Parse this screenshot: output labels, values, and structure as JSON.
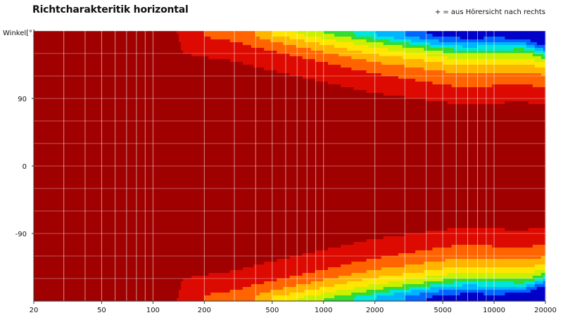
{
  "title": "Richtcharakteritik horizontal",
  "note": "+ = aus Hörersicht nach rechts",
  "chart_data": {
    "type": "heatmap",
    "title": "Richtcharakteritik horizontal",
    "xlabel": "",
    "ylabel": "Winkel[°]",
    "x_scale": "log",
    "xlim": [
      20,
      20000
    ],
    "ylim": [
      -180,
      180
    ],
    "x_ticks": [
      20,
      50,
      100,
      200,
      500,
      1000,
      2000,
      5000,
      10000,
      20000
    ],
    "x_tick_labels": [
      "20",
      "50",
      "100",
      "200",
      "500",
      "1000",
      "2000",
      "5000",
      "10000",
      "20000"
    ],
    "y_ticks": [
      90,
      0,
      -90
    ],
    "y_tick_labels": [
      "90",
      "0",
      "-90"
    ],
    "grid": true,
    "colormap": [
      "#a00000",
      "#dc0a00",
      "#ff6400",
      "#ffb400",
      "#ffe600",
      "#c8f000",
      "#32dc32",
      "#00e6dc",
      "#00b4ff",
      "#0064ff",
      "#0000c8"
    ],
    "level_boundaries_by_frequency": {
      "frequency_hz": [
        20,
        140,
        150,
        200,
        300,
        400,
        500,
        700,
        1000,
        1500,
        2000,
        3000,
        4000,
        5000,
        7000,
        10000,
        15000,
        20000
      ],
      "bands": [
        {
          "level": 1,
          "angle_deg": [
            999,
            174,
            150,
            145,
            140,
            132,
            127,
            120,
            112,
            103,
            97,
            92,
            88,
            85,
            82,
            84,
            85,
            82
          ]
        },
        {
          "level": 2,
          "angle_deg": [
            999,
            999,
            999,
            172,
            166,
            158,
            153,
            146,
            138,
            129,
            123,
            117,
            112,
            108,
            105,
            107,
            108,
            105
          ]
        },
        {
          "level": 3,
          "angle_deg": [
            999,
            999,
            999,
            999,
            999,
            172,
            166,
            159,
            152,
            144,
            138,
            133,
            129,
            126,
            123,
            124,
            125,
            121
          ]
        },
        {
          "level": 4,
          "angle_deg": [
            999,
            999,
            999,
            999,
            999,
            999,
            174,
            169,
            162,
            154,
            149,
            144,
            140,
            137,
            134,
            135,
            136,
            130
          ]
        },
        {
          "level": 5,
          "angle_deg": [
            999,
            999,
            999,
            999,
            999,
            999,
            999,
            176,
            170,
            163,
            158,
            152,
            148,
            145,
            142,
            143,
            144,
            137
          ]
        },
        {
          "level": 6,
          "angle_deg": [
            999,
            999,
            999,
            999,
            999,
            999,
            999,
            999,
            177,
            170,
            165,
            159,
            155,
            152,
            149,
            150,
            151,
            143
          ]
        },
        {
          "level": 7,
          "angle_deg": [
            999,
            999,
            999,
            999,
            999,
            999,
            999,
            999,
            999,
            175,
            170,
            164,
            160,
            157,
            154,
            155,
            156,
            147
          ]
        },
        {
          "level": 8,
          "angle_deg": [
            999,
            999,
            999,
            999,
            999,
            999,
            999,
            999,
            999,
            999,
            175,
            168,
            164,
            161,
            159,
            160,
            160,
            151
          ]
        },
        {
          "level": 9,
          "angle_deg": [
            999,
            999,
            999,
            999,
            999,
            999,
            999,
            999,
            999,
            999,
            999,
            174,
            169,
            166,
            164,
            165,
            164,
            155
          ]
        },
        {
          "level": 10,
          "angle_deg": [
            999,
            999,
            999,
            999,
            999,
            999,
            999,
            999,
            999,
            999,
            999,
            999,
            176,
            172,
            170,
            171,
            170,
            159
          ]
        }
      ]
    }
  }
}
